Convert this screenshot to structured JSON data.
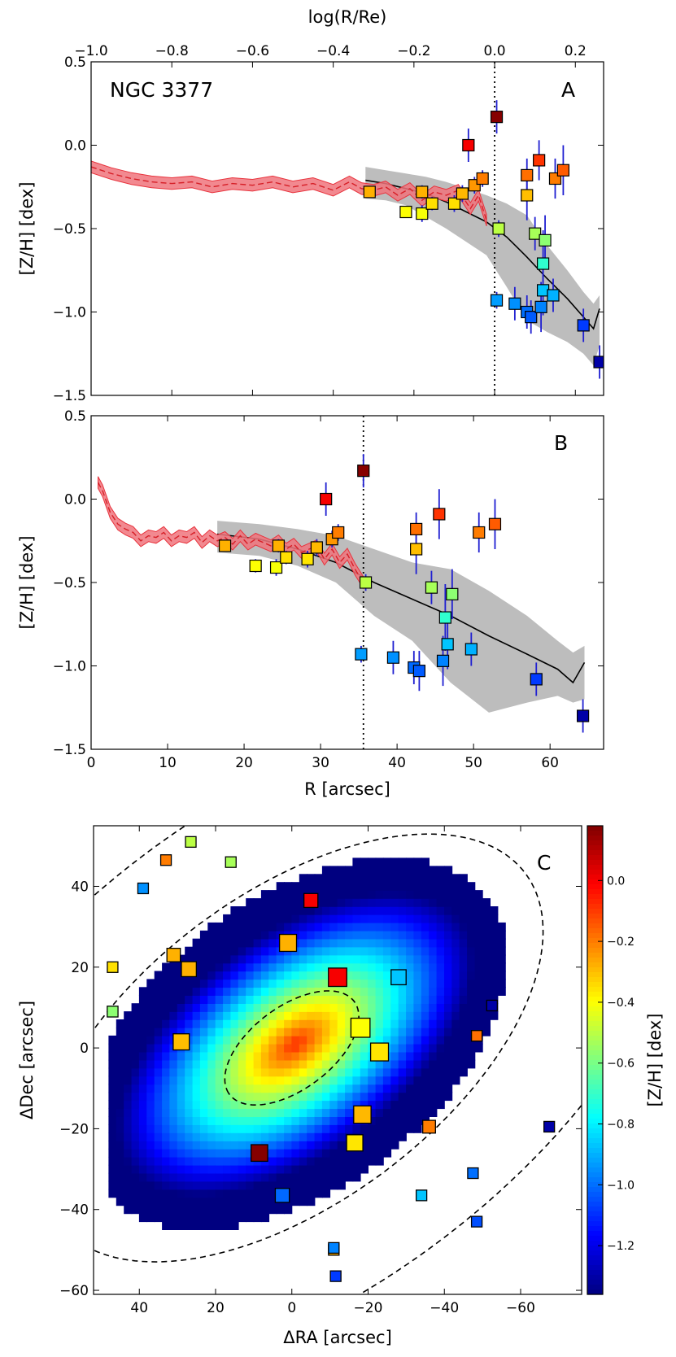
{
  "chart_data": [
    {
      "type": "scatter",
      "panel": "A",
      "title": "NGC 3377",
      "panel_label": "A",
      "xlabel": "",
      "top_xlabel": "log(R/Re)",
      "ylabel": "[Z/H] [dex]",
      "xlim": [
        -1.0,
        0.27
      ],
      "ylim": [
        -1.5,
        0.5
      ],
      "xticks": [
        "−1.0",
        "−0.8",
        "−0.6",
        "−0.4",
        "−0.2",
        "0.0",
        "0.2"
      ],
      "xtick_values": [
        -1.0,
        -0.8,
        -0.6,
        -0.4,
        -0.2,
        0.0,
        0.2
      ],
      "yticks": [
        "0.5",
        "0.0",
        "−0.5",
        "−1.0",
        "−1.5"
      ],
      "ytick_values": [
        0.5,
        0.0,
        -0.5,
        -1.0,
        -1.5
      ],
      "vline": 0.0,
      "stellar_profile": {
        "x": [
          -1.0,
          -0.95,
          -0.9,
          -0.85,
          -0.8,
          -0.75,
          -0.7,
          -0.65,
          -0.6,
          -0.55,
          -0.5,
          -0.45,
          -0.4,
          -0.36,
          -0.33,
          -0.3,
          -0.27,
          -0.24,
          -0.21,
          -0.18,
          -0.15,
          -0.12,
          -0.09,
          -0.06,
          -0.04,
          -0.02
        ],
        "y": [
          -0.13,
          -0.17,
          -0.2,
          -0.22,
          -0.23,
          -0.22,
          -0.25,
          -0.23,
          -0.24,
          -0.22,
          -0.25,
          -0.23,
          -0.27,
          -0.22,
          -0.26,
          -0.27,
          -0.25,
          -0.3,
          -0.26,
          -0.33,
          -0.28,
          -0.3,
          -0.27,
          -0.38,
          -0.3,
          -0.45
        ],
        "halfwidth": 0.035
      },
      "gc_profile": {
        "x": [
          -0.32,
          -0.27,
          -0.22,
          -0.17,
          -0.12,
          -0.07,
          -0.02,
          0.03,
          0.08,
          0.13,
          0.18,
          0.22,
          0.245,
          0.26
        ],
        "y": [
          -0.21,
          -0.23,
          -0.26,
          -0.29,
          -0.34,
          -0.4,
          -0.46,
          -0.55,
          -0.67,
          -0.8,
          -0.92,
          -1.03,
          -1.1,
          -0.98
        ],
        "lower": [
          -0.32,
          -0.33,
          -0.36,
          -0.43,
          -0.5,
          -0.58,
          -0.66,
          -0.85,
          -1.05,
          -1.12,
          -1.18,
          -1.25,
          -1.32,
          -1.2
        ],
        "upper": [
          -0.13,
          -0.15,
          -0.17,
          -0.19,
          -0.22,
          -0.26,
          -0.3,
          -0.35,
          -0.42,
          -0.6,
          -0.75,
          -0.88,
          -0.95,
          -0.9
        ]
      },
      "points": [
        {
          "x": -0.31,
          "y": -0.28,
          "err": 0.03,
          "z": -0.28
        },
        {
          "x": -0.22,
          "y": -0.4,
          "err": 0.03,
          "z": -0.4
        },
        {
          "x": -0.18,
          "y": -0.41,
          "err": 0.05,
          "z": -0.41
        },
        {
          "x": -0.18,
          "y": -0.28,
          "err": 0.04,
          "z": -0.28
        },
        {
          "x": -0.155,
          "y": -0.35,
          "err": 0.04,
          "z": -0.35
        },
        {
          "x": -0.1,
          "y": -0.35,
          "err": 0.05,
          "z": -0.35
        },
        {
          "x": -0.08,
          "y": -0.29,
          "err": 0.05,
          "z": -0.29
        },
        {
          "x": -0.065,
          "y": 0.0,
          "err": 0.1,
          "z": 0.0
        },
        {
          "x": -0.05,
          "y": -0.24,
          "err": 0.05,
          "z": -0.24
        },
        {
          "x": -0.03,
          "y": -0.2,
          "err": 0.05,
          "z": -0.2
        },
        {
          "x": 0.005,
          "y": 0.17,
          "err": 0.1,
          "z": 0.17
        },
        {
          "x": 0.005,
          "y": -0.93,
          "err": 0.05,
          "z": -0.93
        },
        {
          "x": 0.01,
          "y": -0.5,
          "err": 0.05,
          "z": -0.5
        },
        {
          "x": 0.05,
          "y": -0.95,
          "err": 0.1,
          "z": -0.95
        },
        {
          "x": 0.08,
          "y": -0.3,
          "err": 0.15,
          "z": -0.3
        },
        {
          "x": 0.08,
          "y": -0.18,
          "err": 0.1,
          "z": -0.18
        },
        {
          "x": 0.08,
          "y": -1.0,
          "err": 0.1,
          "z": -1.0
        },
        {
          "x": 0.09,
          "y": -1.03,
          "err": 0.1,
          "z": -1.03
        },
        {
          "x": 0.1,
          "y": -0.53,
          "err": 0.1,
          "z": -0.53
        },
        {
          "x": 0.11,
          "y": -0.09,
          "err": 0.12,
          "z": -0.09
        },
        {
          "x": 0.115,
          "y": -0.97,
          "err": 0.15,
          "z": -0.97
        },
        {
          "x": 0.12,
          "y": -0.71,
          "err": 0.2,
          "z": -0.71
        },
        {
          "x": 0.12,
          "y": -0.87,
          "err": 0.15,
          "z": -0.87
        },
        {
          "x": 0.125,
          "y": -0.57,
          "err": 0.15,
          "z": -0.57
        },
        {
          "x": 0.145,
          "y": -0.9,
          "err": 0.1,
          "z": -0.9
        },
        {
          "x": 0.15,
          "y": -0.2,
          "err": 0.12,
          "z": -0.2
        },
        {
          "x": 0.17,
          "y": -0.15,
          "err": 0.15,
          "z": -0.15
        },
        {
          "x": 0.22,
          "y": -1.08,
          "err": 0.1,
          "z": -1.08
        },
        {
          "x": 0.26,
          "y": -1.3,
          "err": 0.1,
          "z": -1.3
        }
      ]
    },
    {
      "type": "scatter",
      "panel": "B",
      "title": "",
      "panel_label": "B",
      "xlabel": "R [arcsec]",
      "ylabel": "[Z/H] [dex]",
      "xlim": [
        0,
        67
      ],
      "ylim": [
        -1.5,
        0.5
      ],
      "xticks": [
        "0",
        "10",
        "20",
        "30",
        "40",
        "50",
        "60"
      ],
      "xtick_values": [
        0,
        10,
        20,
        30,
        40,
        50,
        60
      ],
      "yticks": [
        "0.5",
        "0.0",
        "−0.5",
        "−1.0",
        "−1.5"
      ],
      "ytick_values": [
        0.5,
        0.0,
        -0.5,
        -1.0,
        -1.5
      ],
      "vline": 35.6,
      "stellar_profile": {
        "x": [
          0.9,
          1.5,
          2.5,
          3.5,
          4.5,
          5.5,
          6.5,
          7.5,
          8.5,
          9.5,
          10.5,
          11.5,
          12.5,
          13.5,
          14.5,
          15.5,
          16.5,
          17.5,
          18.5,
          19.5,
          20.5,
          21.5,
          22.5,
          23.5,
          24.5,
          25.5,
          26.5,
          27.5,
          28.5,
          29.5,
          30.5,
          31.5,
          32.5,
          33.5,
          34.5,
          35.6
        ],
        "y": [
          0.1,
          0.05,
          -0.08,
          -0.15,
          -0.18,
          -0.2,
          -0.25,
          -0.22,
          -0.23,
          -0.2,
          -0.25,
          -0.22,
          -0.23,
          -0.2,
          -0.26,
          -0.22,
          -0.25,
          -0.23,
          -0.27,
          -0.22,
          -0.27,
          -0.24,
          -0.26,
          -0.28,
          -0.25,
          -0.3,
          -0.27,
          -0.32,
          -0.3,
          -0.28,
          -0.36,
          -0.3,
          -0.38,
          -0.33,
          -0.42,
          -0.5
        ],
        "halfwidth": 0.035
      },
      "gc_profile": {
        "x": [
          16.5,
          22,
          27,
          32,
          37,
          42,
          47,
          52,
          57,
          61,
          63,
          64.5
        ],
        "y": [
          -0.21,
          -0.24,
          -0.3,
          -0.38,
          -0.5,
          -0.6,
          -0.7,
          -0.82,
          -0.93,
          -1.02,
          -1.1,
          -0.98
        ],
        "lower": [
          -0.32,
          -0.34,
          -0.4,
          -0.5,
          -0.7,
          -0.85,
          -1.1,
          -1.28,
          -1.22,
          -1.18,
          -1.22,
          -1.2
        ],
        "upper": [
          -0.13,
          -0.15,
          -0.18,
          -0.22,
          -0.3,
          -0.38,
          -0.42,
          -0.55,
          -0.7,
          -0.85,
          -0.92,
          -0.88
        ]
      },
      "points": [
        {
          "x": 17.5,
          "y": -0.28,
          "err": 0.03,
          "z": -0.28
        },
        {
          "x": 21.5,
          "y": -0.4,
          "err": 0.04,
          "z": -0.4
        },
        {
          "x": 24.2,
          "y": -0.41,
          "err": 0.05,
          "z": -0.41
        },
        {
          "x": 24.5,
          "y": -0.28,
          "err": 0.04,
          "z": -0.28
        },
        {
          "x": 25.5,
          "y": -0.35,
          "err": 0.04,
          "z": -0.35
        },
        {
          "x": 28.3,
          "y": -0.36,
          "err": 0.05,
          "z": -0.36
        },
        {
          "x": 29.5,
          "y": -0.29,
          "err": 0.05,
          "z": -0.29
        },
        {
          "x": 30.7,
          "y": 0.0,
          "err": 0.1,
          "z": 0.0
        },
        {
          "x": 31.5,
          "y": -0.24,
          "err": 0.05,
          "z": -0.24
        },
        {
          "x": 32.3,
          "y": -0.2,
          "err": 0.05,
          "z": -0.2
        },
        {
          "x": 35.6,
          "y": 0.17,
          "err": 0.1,
          "z": 0.17
        },
        {
          "x": 35.3,
          "y": -0.93,
          "err": 0.05,
          "z": -0.93
        },
        {
          "x": 35.9,
          "y": -0.5,
          "err": 0.05,
          "z": -0.5
        },
        {
          "x": 39.5,
          "y": -0.95,
          "err": 0.1,
          "z": -0.95
        },
        {
          "x": 42.5,
          "y": -0.3,
          "err": 0.15,
          "z": -0.3
        },
        {
          "x": 42.5,
          "y": -0.18,
          "err": 0.1,
          "z": -0.18
        },
        {
          "x": 42.2,
          "y": -1.01,
          "err": 0.1,
          "z": -1.01
        },
        {
          "x": 42.9,
          "y": -1.03,
          "err": 0.12,
          "z": -1.03
        },
        {
          "x": 44.5,
          "y": -0.53,
          "err": 0.1,
          "z": -0.53
        },
        {
          "x": 45.5,
          "y": -0.09,
          "err": 0.15,
          "z": -0.09
        },
        {
          "x": 46.0,
          "y": -0.97,
          "err": 0.15,
          "z": -0.97
        },
        {
          "x": 46.3,
          "y": -0.71,
          "err": 0.2,
          "z": -0.71
        },
        {
          "x": 46.6,
          "y": -0.87,
          "err": 0.15,
          "z": -0.87
        },
        {
          "x": 47.2,
          "y": -0.57,
          "err": 0.15,
          "z": -0.57
        },
        {
          "x": 49.7,
          "y": -0.9,
          "err": 0.1,
          "z": -0.9
        },
        {
          "x": 50.7,
          "y": -0.2,
          "err": 0.12,
          "z": -0.2
        },
        {
          "x": 52.8,
          "y": -0.15,
          "err": 0.15,
          "z": -0.15
        },
        {
          "x": 58.2,
          "y": -1.08,
          "err": 0.1,
          "z": -1.08
        },
        {
          "x": 64.3,
          "y": -1.3,
          "err": 0.1,
          "z": -1.3
        }
      ]
    },
    {
      "type": "heatmap",
      "panel": "C",
      "title": "",
      "panel_label": "C",
      "xlabel": "ΔRA [arcsec]",
      "ylabel": "ΔDec [arcsec]",
      "xlim": [
        52,
        -76
      ],
      "ylim": [
        -61,
        55
      ],
      "xticks": [
        "40",
        "20",
        "0",
        "−20",
        "−40",
        "−60"
      ],
      "xtick_values": [
        40,
        20,
        0,
        -20,
        -40,
        -60
      ],
      "yticks": [
        "40",
        "20",
        "0",
        "−20",
        "−40",
        "−60"
      ],
      "ytick_values": [
        40,
        20,
        0,
        -20,
        -40,
        -60
      ],
      "colorbar": {
        "label": "[Z/H] [dex]",
        "range": [
          -1.36,
          0.18
        ],
        "ticks": [
          "0.0",
          "−0.2",
          "−0.4",
          "−0.6",
          "−0.8",
          "−1.0",
          "−1.2"
        ],
        "tick_values": [
          0.0,
          -0.2,
          -0.4,
          -0.6,
          -0.8,
          -1.0,
          -1.2
        ]
      },
      "map_model": {
        "peak": -0.07,
        "slope": -0.0243,
        "pa_deg": -34,
        "axis_ratio": 0.52
      },
      "points": [
        {
          "ra": 26.5,
          "dec": 51,
          "z": -0.5
        },
        {
          "ra": 33,
          "dec": 46.5,
          "z": -0.2
        },
        {
          "ra": 16,
          "dec": 46,
          "z": -0.53
        },
        {
          "ra": 39,
          "dec": 39.5,
          "z": -0.95
        },
        {
          "ra": -5,
          "dec": 36.5,
          "z": 0.0
        },
        {
          "ra": 47,
          "dec": 20,
          "z": -0.35
        },
        {
          "ra": 31,
          "dec": 23,
          "z": -0.28
        },
        {
          "ra": 27,
          "dec": 19.5,
          "z": -0.28
        },
        {
          "ra": 1,
          "dec": 26,
          "z": -0.28
        },
        {
          "ra": -12,
          "dec": 17.5,
          "z": 0.0
        },
        {
          "ra": -28,
          "dec": 17.5,
          "z": -0.87
        },
        {
          "ra": 47,
          "dec": 9,
          "z": -0.57
        },
        {
          "ra": 29,
          "dec": 1.5,
          "z": -0.3
        },
        {
          "ra": -18,
          "dec": 5,
          "z": -0.4
        },
        {
          "ra": -23,
          "dec": -1,
          "z": -0.36
        },
        {
          "ra": -18.5,
          "dec": -16.5,
          "z": -0.29
        },
        {
          "ra": -16.5,
          "dec": -23.5,
          "z": -0.36
        },
        {
          "ra": -36,
          "dec": -19.5,
          "z": -0.2
        },
        {
          "ra": 8.5,
          "dec": -26,
          "z": 0.17
        },
        {
          "ra": -34,
          "dec": -36.5,
          "z": -0.87
        },
        {
          "ra": 2.5,
          "dec": -36.5,
          "z": -1.01
        },
        {
          "ra": -47.5,
          "dec": -31,
          "z": -1.0
        },
        {
          "ra": -48.5,
          "dec": -43,
          "z": -1.05
        },
        {
          "ra": -48.5,
          "dec": 3,
          "z": -0.18
        },
        {
          "ra": -52.5,
          "dec": 10.5,
          "z": -1.3
        },
        {
          "ra": -67.5,
          "dec": -19.5,
          "z": -1.3
        },
        {
          "ra": -11,
          "dec": -50,
          "z": -0.28
        },
        {
          "ra": -11,
          "dec": -49.5,
          "z": -0.97
        },
        {
          "ra": -11.5,
          "dec": -56.5,
          "z": -1.08
        }
      ]
    }
  ]
}
